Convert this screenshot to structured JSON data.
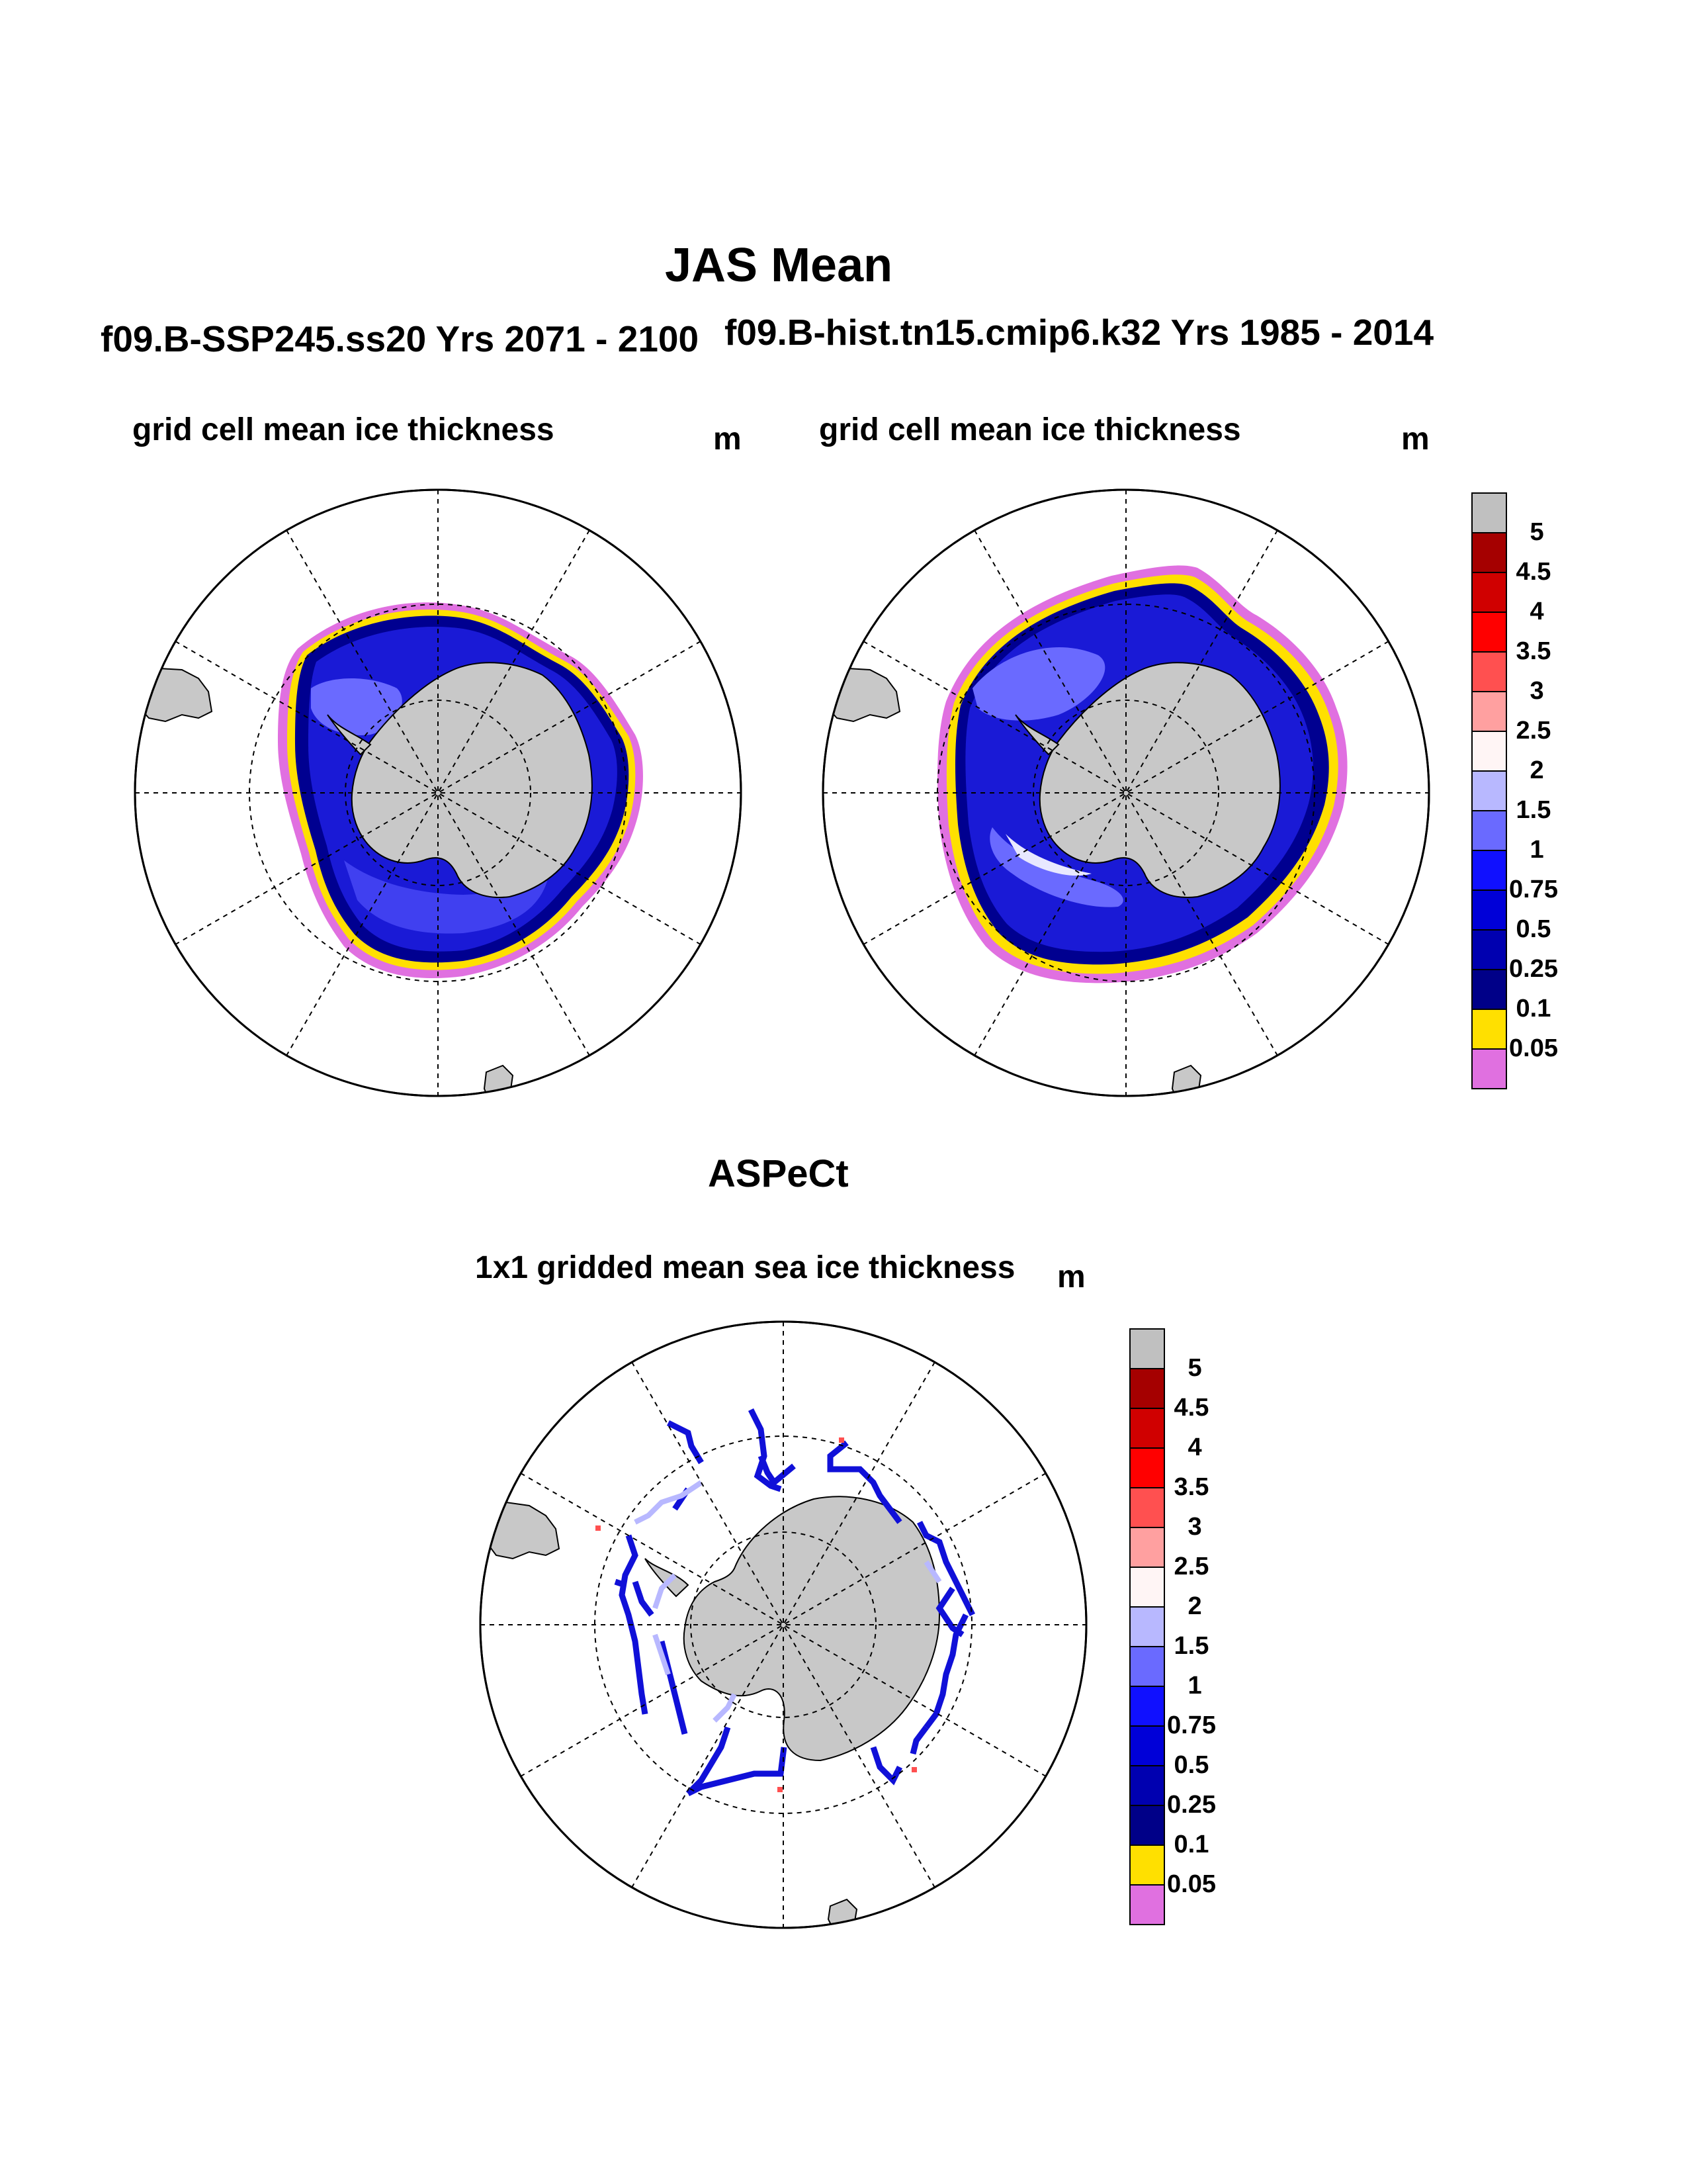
{
  "title": "JAS Mean",
  "panels": [
    {
      "id": "top-left",
      "case_title": "f09.B-SSP245.ss20  Yrs 2071 - 2100",
      "variable_label": "grid cell mean ice thickness",
      "unit": "m"
    },
    {
      "id": "top-right",
      "case_title": "f09.B-hist.tn15.cmip6.k32  Yrs 1985 - 2014",
      "variable_label": "grid cell mean ice thickness",
      "unit": "m"
    },
    {
      "id": "bottom",
      "case_title": "ASPeCt",
      "variable_label": "1x1 gridded mean sea ice thickness",
      "unit": "m"
    }
  ],
  "colorbar": {
    "labels": [
      "5",
      "4.5",
      "4",
      "3.5",
      "3",
      "2.5",
      "2",
      "1.5",
      "1",
      "0.75",
      "0.5",
      "0.25",
      "0.1",
      "0.05"
    ],
    "colors": [
      "#c0c0c0",
      "#a50000",
      "#d00000",
      "#ff0000",
      "#ff5050",
      "#ffa0a0",
      "#fff5f5",
      "#b8b8ff",
      "#6a6aff",
      "#1010ff",
      "#0000d8",
      "#0000b0",
      "#000088",
      "#ffe000",
      "#e070e0"
    ]
  },
  "colors": {
    "land": "#c8c8c8",
    "ice_thick": "#1a1ad6",
    "ice_mid": "#3c3cee",
    "ice_light": "#7a7af8",
    "ice_dark": "#000090",
    "edge_yellow": "#ffe000",
    "edge_pink": "#e070e0"
  }
}
